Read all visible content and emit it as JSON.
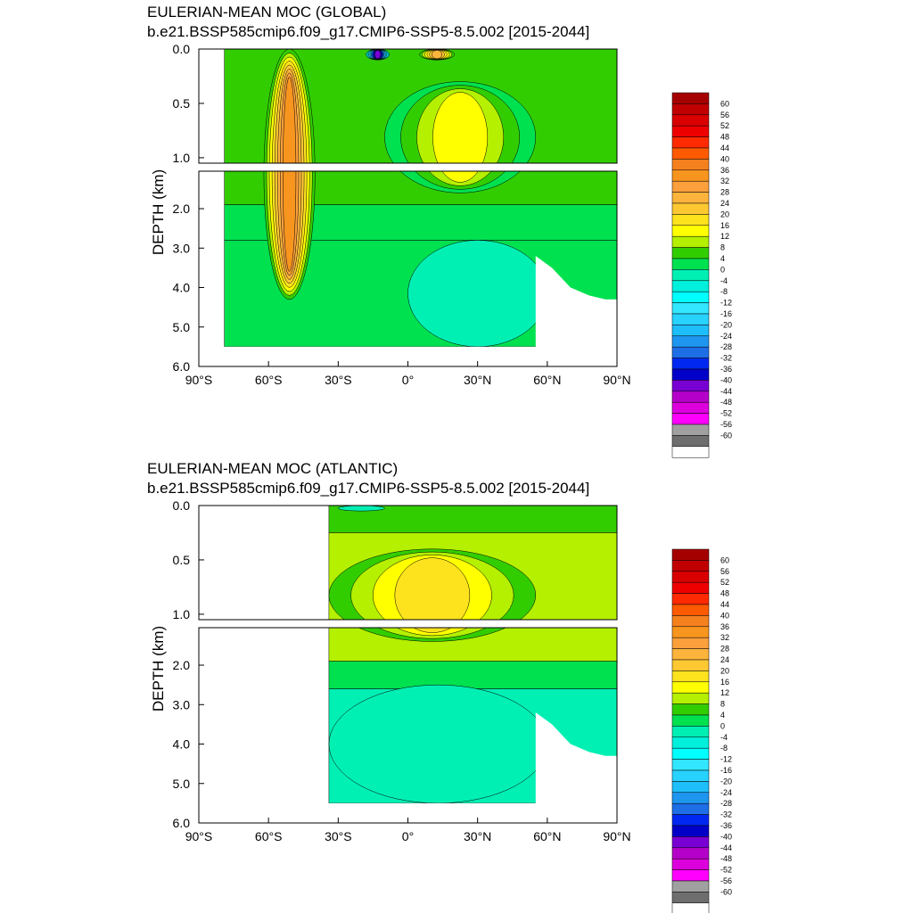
{
  "chart_data": [
    {
      "type": "heatmap",
      "title": "EULERIAN-MEAN MOC (GLOBAL)",
      "subtitle": "b.e21.BSSP585cmip6.f09_g17.CMIP6-SSP5-8.5.002 [2015-2044]",
      "ylabel": "DEPTH (km)",
      "xlim": [
        -90,
        90
      ],
      "ylim": [
        6.0,
        0.0
      ],
      "x_ticks": [
        -90,
        -60,
        -30,
        0,
        30,
        60,
        90
      ],
      "x_tick_labels": [
        "90°S",
        "60°S",
        "30°S",
        "0°",
        "30°N",
        "60°N",
        "90°N"
      ],
      "y_ticks_upper": [
        0.0,
        0.5,
        1.0
      ],
      "y_tick_labels_upper": [
        "0.0",
        "0.5",
        "1.0"
      ],
      "y_ticks_lower": [
        2.0,
        3.0,
        4.0,
        5.0,
        6.0
      ],
      "y_tick_labels_lower": [
        "2.0",
        "3.0",
        "4.0",
        "5.0",
        "6.0"
      ],
      "data_extent_lat": [
        -79,
        90
      ],
      "features": [
        {
          "lat_range": [
            -62,
            -40
          ],
          "depth_range": [
            0.0,
            4.3
          ],
          "value": 32
        },
        {
          "lat_range": [
            -18,
            -8
          ],
          "depth_range": [
            0.0,
            0.1
          ],
          "value": -44
        },
        {
          "lat_range": [
            5,
            20
          ],
          "depth_range": [
            0.0,
            0.1
          ],
          "value": 24
        },
        {
          "lat_range": [
            -10,
            55
          ],
          "depth_range": [
            0.3,
            1.6
          ],
          "value": 14
        },
        {
          "lat_range": [
            0,
            60
          ],
          "depth_range": [
            2.8,
            5.5
          ],
          "value": -2
        }
      ]
    },
    {
      "type": "heatmap",
      "title": "EULERIAN-MEAN MOC (ATLANTIC)",
      "subtitle": "b.e21.BSSP585cmip6.f09_g17.CMIP6-SSP5-8.5.002 [2015-2044]",
      "ylabel": "DEPTH (km)",
      "xlim": [
        -90,
        90
      ],
      "ylim": [
        6.0,
        0.0
      ],
      "x_ticks": [
        -90,
        -60,
        -30,
        0,
        30,
        60,
        90
      ],
      "x_tick_labels": [
        "90°S",
        "60°S",
        "30°S",
        "0°",
        "30°N",
        "60°N",
        "90°N"
      ],
      "y_ticks_upper": [
        0.0,
        0.5,
        1.0
      ],
      "y_tick_labels_upper": [
        "0.0",
        "0.5",
        "1.0"
      ],
      "y_ticks_lower": [
        2.0,
        3.0,
        4.0,
        5.0,
        6.0
      ],
      "y_tick_labels_lower": [
        "2.0",
        "3.0",
        "4.0",
        "5.0",
        "6.0"
      ],
      "data_extent_lat": [
        -34,
        90
      ],
      "features": [
        {
          "lat_range": [
            -34,
            55
          ],
          "depth_range": [
            0.4,
            1.4
          ],
          "value": 16
        },
        {
          "lat_range": [
            -30,
            -10
          ],
          "depth_range": [
            0.0,
            0.05
          ],
          "value": -4
        },
        {
          "lat_range": [
            -34,
            60
          ],
          "depth_range": [
            2.5,
            5.5
          ],
          "value": -2
        }
      ]
    }
  ],
  "colorbar": {
    "levels": [
      "60",
      "56",
      "52",
      "48",
      "44",
      "40",
      "36",
      "32",
      "28",
      "24",
      "20",
      "16",
      "12",
      "8",
      "4",
      "0",
      "-4",
      "-8",
      "-12",
      "-16",
      "-20",
      "-24",
      "-28",
      "-32",
      "-36",
      "-40",
      "-44",
      "-48",
      "-52",
      "-56",
      "-60"
    ],
    "colors": [
      "#a50000",
      "#c00000",
      "#d80000",
      "#ee0000",
      "#ff2a00",
      "#ff5a00",
      "#f5801e",
      "#f7951e",
      "#fba03c",
      "#fcb43c",
      "#fdc832",
      "#fde21e",
      "#ffff00",
      "#b4f000",
      "#32cd00",
      "#00e150",
      "#00f0b4",
      "#00f0dc",
      "#00ffff",
      "#32e6ff",
      "#28d2ff",
      "#1ebefa",
      "#1e96f0",
      "#1e6ee6",
      "#0028f0",
      "#0000c8",
      "#7800d2",
      "#b400c8",
      "#dc00dc",
      "#ff00ff",
      "#a0a0a0",
      "#6e6e6e",
      "#ffffff"
    ]
  }
}
